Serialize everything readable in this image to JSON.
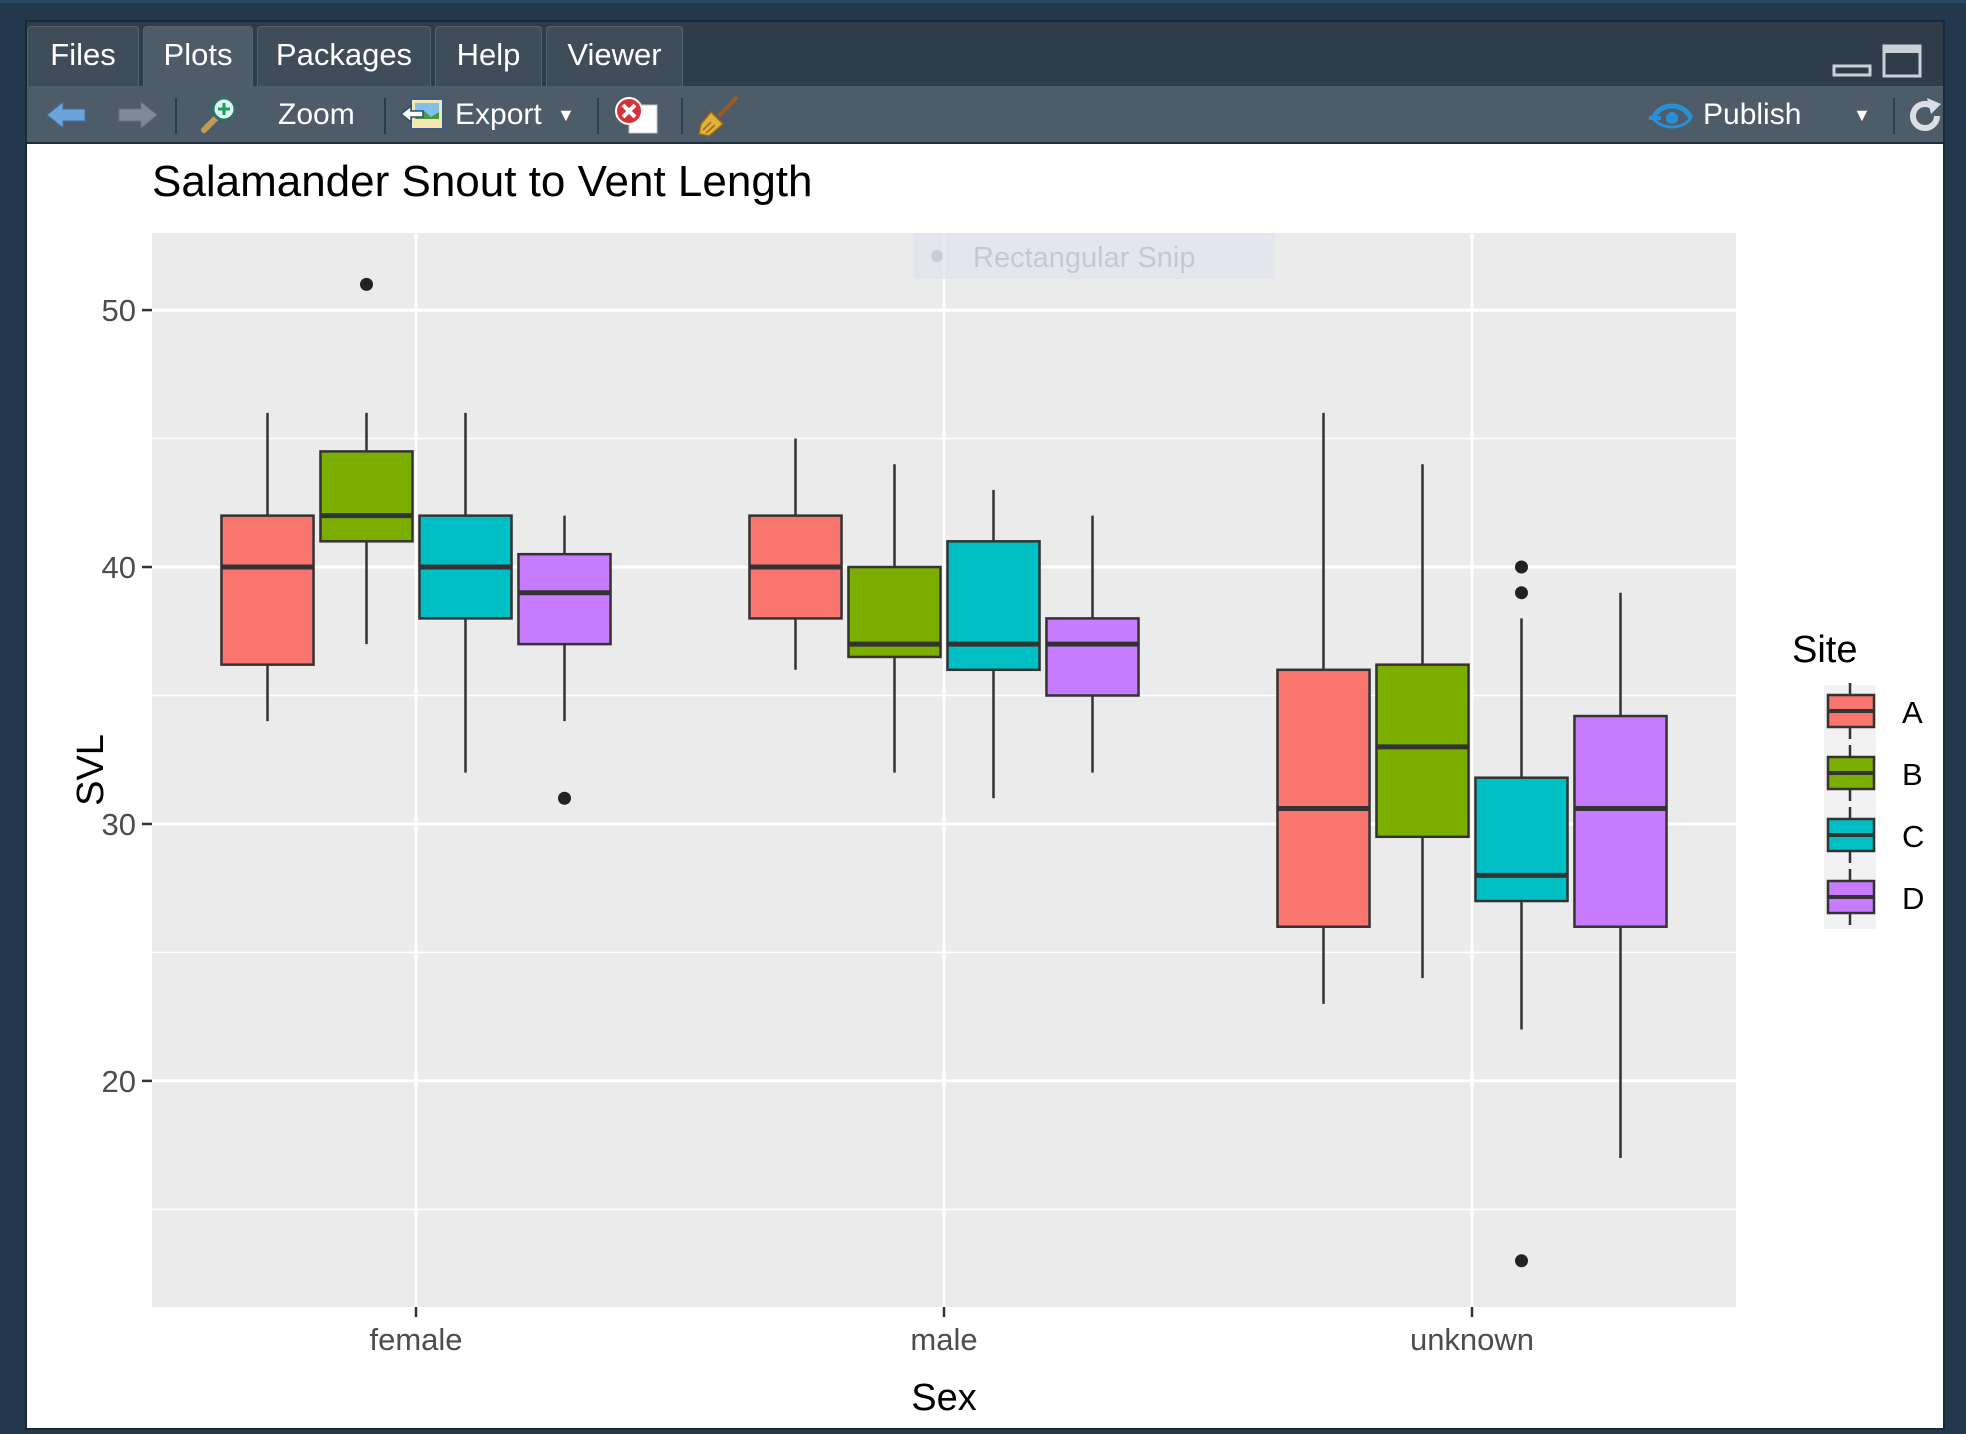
{
  "tabs": [
    {
      "label": "Files",
      "active": false
    },
    {
      "label": "Plots",
      "active": true
    },
    {
      "label": "Packages",
      "active": false
    },
    {
      "label": "Help",
      "active": false
    },
    {
      "label": "Viewer",
      "active": false
    }
  ],
  "toolbar": {
    "zoom_label": "Zoom",
    "export_label": "Export",
    "publish_label": "Publish"
  },
  "overlay": {
    "snip_label": "Rectangular Snip"
  },
  "colors": {
    "A": "#F8766D",
    "B": "#7CAE00",
    "C": "#00BFC4",
    "D": "#C77CFF",
    "panel": "#EBEBEB"
  },
  "chart_data": {
    "type": "boxplot",
    "title": "Salamander Snout to Vent Length",
    "xlabel": "Sex",
    "ylabel": "SVL",
    "categories": [
      "female",
      "male",
      "unknown"
    ],
    "ylim": [
      11.2,
      53
    ],
    "yticks": [
      20,
      30,
      40,
      50
    ],
    "grid": true,
    "legend": {
      "title": "Site",
      "position": "right"
    },
    "series": [
      {
        "name": "A",
        "boxes": [
          {
            "whisker_low": 34,
            "q1": 36.2,
            "median": 40,
            "q3": 42,
            "whisker_high": 46,
            "outliers": []
          },
          {
            "whisker_low": 36,
            "q1": 38,
            "median": 40,
            "q3": 42,
            "whisker_high": 45,
            "outliers": []
          },
          {
            "whisker_low": 23,
            "q1": 26,
            "median": 30.6,
            "q3": 36,
            "whisker_high": 46,
            "outliers": []
          }
        ]
      },
      {
        "name": "B",
        "boxes": [
          {
            "whisker_low": 37,
            "q1": 41,
            "median": 42,
            "q3": 44.5,
            "whisker_high": 46,
            "outliers": [
              51
            ]
          },
          {
            "whisker_low": 32,
            "q1": 36.5,
            "median": 37,
            "q3": 40,
            "whisker_high": 44,
            "outliers": []
          },
          {
            "whisker_low": 24,
            "q1": 29.5,
            "median": 33,
            "q3": 36.2,
            "whisker_high": 44,
            "outliers": []
          }
        ]
      },
      {
        "name": "C",
        "boxes": [
          {
            "whisker_low": 32,
            "q1": 38,
            "median": 40,
            "q3": 42,
            "whisker_high": 46,
            "outliers": []
          },
          {
            "whisker_low": 31,
            "q1": 36,
            "median": 37,
            "q3": 41,
            "whisker_high": 43,
            "outliers": []
          },
          {
            "whisker_low": 22,
            "q1": 27,
            "median": 28,
            "q3": 31.8,
            "whisker_high": 38,
            "outliers": [
              40,
              39,
              13
            ]
          }
        ]
      },
      {
        "name": "D",
        "boxes": [
          {
            "whisker_low": 34,
            "q1": 37,
            "median": 39,
            "q3": 40.5,
            "whisker_high": 42,
            "outliers": [
              31
            ]
          },
          {
            "whisker_low": 32,
            "q1": 35,
            "median": 37,
            "q3": 38,
            "whisker_high": 42,
            "outliers": []
          },
          {
            "whisker_low": 17,
            "q1": 26,
            "median": 30.6,
            "q3": 34.2,
            "whisker_high": 39,
            "outliers": []
          }
        ]
      }
    ]
  }
}
